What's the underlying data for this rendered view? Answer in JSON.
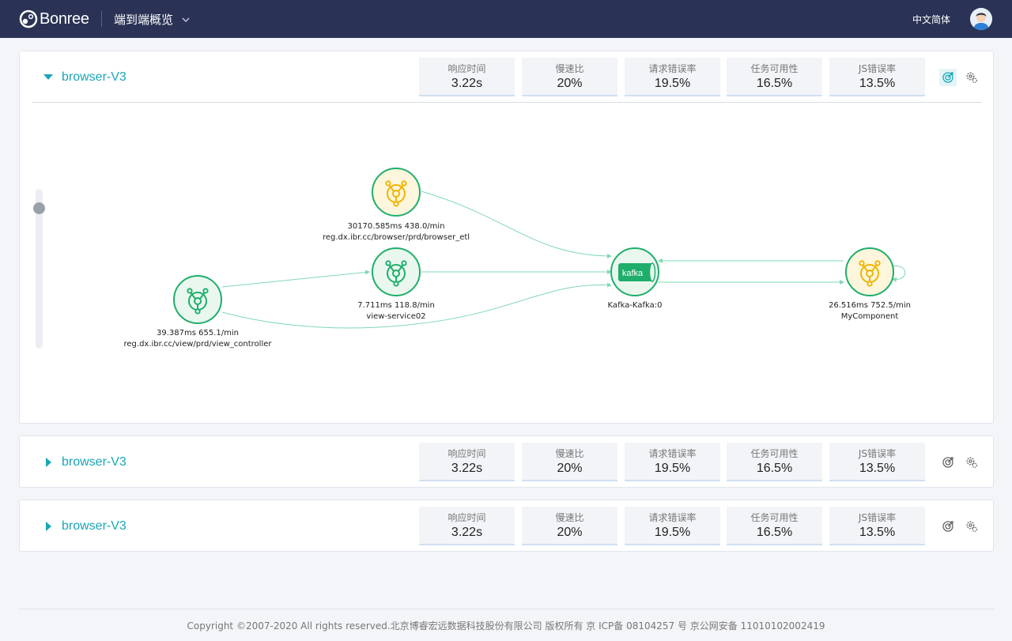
{
  "header": {
    "logo_text": "Bonree",
    "page_title": "端到端概览",
    "language": "中文简体"
  },
  "metric_labels": [
    "响应时间",
    "慢速比",
    "请求错误率",
    "任务可用性",
    "JS错误率"
  ],
  "panels": [
    {
      "name": "browser-V3",
      "expanded": true,
      "metrics": [
        "3.22s",
        "20%",
        "19.5%",
        "16.5%",
        "13.5%"
      ]
    },
    {
      "name": "browser-V3",
      "expanded": false,
      "metrics": [
        "3.22s",
        "20%",
        "19.5%",
        "16.5%",
        "13.5%"
      ]
    },
    {
      "name": "browser-V3",
      "expanded": false,
      "metrics": [
        "3.22s",
        "20%",
        "19.5%",
        "16.5%",
        "13.5%"
      ]
    }
  ],
  "topology": {
    "nodes": {
      "view_controller": {
        "stats": "39.387ms 655.1/min",
        "name": "reg.dx.ibr.cc/view/prd/view_controller",
        "status": "normal"
      },
      "browser_etl": {
        "stats": "30170.585ms 438.0/min",
        "name": "reg.dx.ibr.cc/browser/prd/browser_etl",
        "status": "warning"
      },
      "view_service02": {
        "stats": "7.711ms 118.8/min",
        "name": "view-service02",
        "status": "normal"
      },
      "kafka": {
        "stats": "",
        "name": "Kafka-Kafka:0",
        "status": "normal",
        "icon_text": "kafka"
      },
      "my_component": {
        "stats": "26.516ms 752.5/min",
        "name": "MyComponent",
        "status": "warning"
      }
    },
    "zoom_level": 0.9
  },
  "colors": {
    "header_bg": "#2a3355",
    "accent": "#1aa6b8",
    "normal": "#1fae6a",
    "warning": "#f0b400",
    "edge": "#7fd8b4"
  },
  "footer": {
    "copyright": "Copyright ©2007-2020 All rights reserved.北京博睿宏远数据科技股份有限公司 版权所有 京 ICP备 08104257 号 京公网安备 11010102002419"
  }
}
